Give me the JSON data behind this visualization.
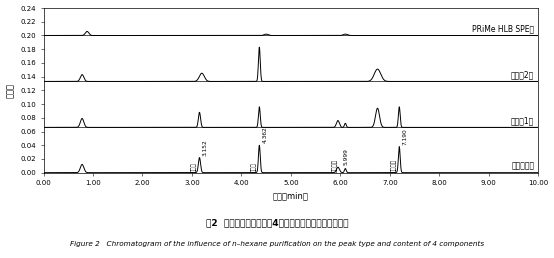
{
  "title_cn": "图2  正己烷净化方式下剙4组分峰型及含量的影响色谱图",
  "title_en": "Figure 2   Chromatogram of the influence of n–hexane purification on the peak type and content of 4 components",
  "ylabel": "响应值",
  "xlabel": "时间（min）",
  "xmin": 0.0,
  "xmax": 10.0,
  "ymin": 0.0,
  "ymax": 0.24,
  "yticks": [
    0.0,
    0.02,
    0.04,
    0.06,
    0.08,
    0.1,
    0.12,
    0.14,
    0.16,
    0.18,
    0.2,
    0.22,
    0.24
  ],
  "xticks": [
    0.0,
    1.0,
    2.0,
    3.0,
    4.0,
    5.0,
    6.0,
    7.0,
    8.0,
    9.0,
    10.0
  ],
  "label_trace1": "PRiMe HLB SPE柱",
  "label_trace2": "正己烷2次",
  "label_trace3": "正己烷1次",
  "label_trace4": "样本不净化",
  "ann_time1": "3.152",
  "ann_time2": "4.362",
  "ann_time3": "5.999",
  "ann_time4": "7.190",
  "ann_cn1": "苯甲酸",
  "ann_cn2": "山梨酸",
  "ann_cn3": "脸氯乙酸",
  "ann_cn4": "脸氯乙酸",
  "off1": 0.2,
  "off2": 0.133,
  "off3": 0.066,
  "off4": 0.0,
  "background_color": "#ffffff"
}
